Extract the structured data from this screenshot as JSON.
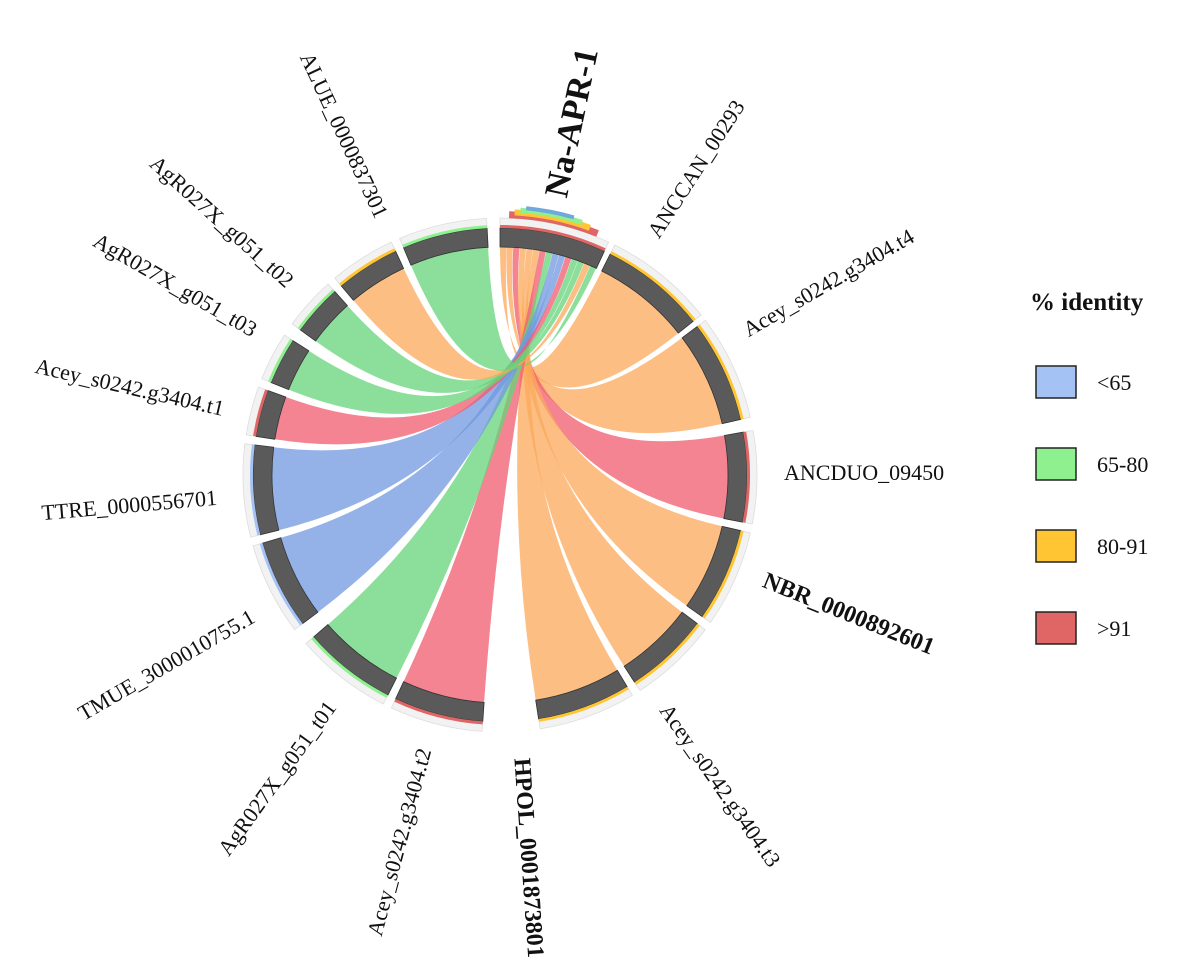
{
  "chart_data": {
    "type": "chord",
    "hub": "Na-APR-1",
    "segments": [
      {
        "name": "Na-APR-1",
        "bold": true,
        "hub": true
      },
      {
        "name": "ANCCAN_00293",
        "identity": "80-91"
      },
      {
        "name": "Acey_s0242.g3404.t4",
        "identity": "80-91"
      },
      {
        "name": "ANCDUO_09450",
        "identity": ">91"
      },
      {
        "name": "NBR_0000892601",
        "identity": "80-91",
        "bold": true
      },
      {
        "name": "Acey_s0242.g3404.t3",
        "identity": "80-91"
      },
      {
        "name": "HPOL_0001873801",
        "identity": "80-91",
        "bold": true
      },
      {
        "name": "Acey_s0242.g3404.t2",
        "identity": ">91"
      },
      {
        "name": "AgR027X_g051_t01",
        "identity": "65-80"
      },
      {
        "name": "TMUE_3000010755.1",
        "identity": "<65"
      },
      {
        "name": "TTRE_0000556701",
        "identity": "<65"
      },
      {
        "name": "Acey_s0242.g3404.t1",
        "identity": ">91"
      },
      {
        "name": "AgR027X_g051_t03",
        "identity": "65-80"
      },
      {
        "name": "AgR027X_g051_t02",
        "identity": "65-80"
      },
      {
        "name": "ALUE_0000837301",
        "identity": "80-91"
      },
      {
        "name": "",
        "identity": "65-80"
      }
    ],
    "legend": {
      "title": "% identity",
      "entries": [
        {
          "label": "<65",
          "color": "#a4c2f4"
        },
        {
          "label": "65-80",
          "color": "#8ef08e"
        },
        {
          "label": "80-91",
          "color": "#ffc533"
        },
        {
          "label": ">91",
          "color": "#e06666"
        }
      ]
    },
    "ribbon_colors": {
      "<65": "#7098e0",
      "65-80": "#66d479",
      "80-91": "#fba85a",
      ">91": "#f05b6e"
    }
  }
}
